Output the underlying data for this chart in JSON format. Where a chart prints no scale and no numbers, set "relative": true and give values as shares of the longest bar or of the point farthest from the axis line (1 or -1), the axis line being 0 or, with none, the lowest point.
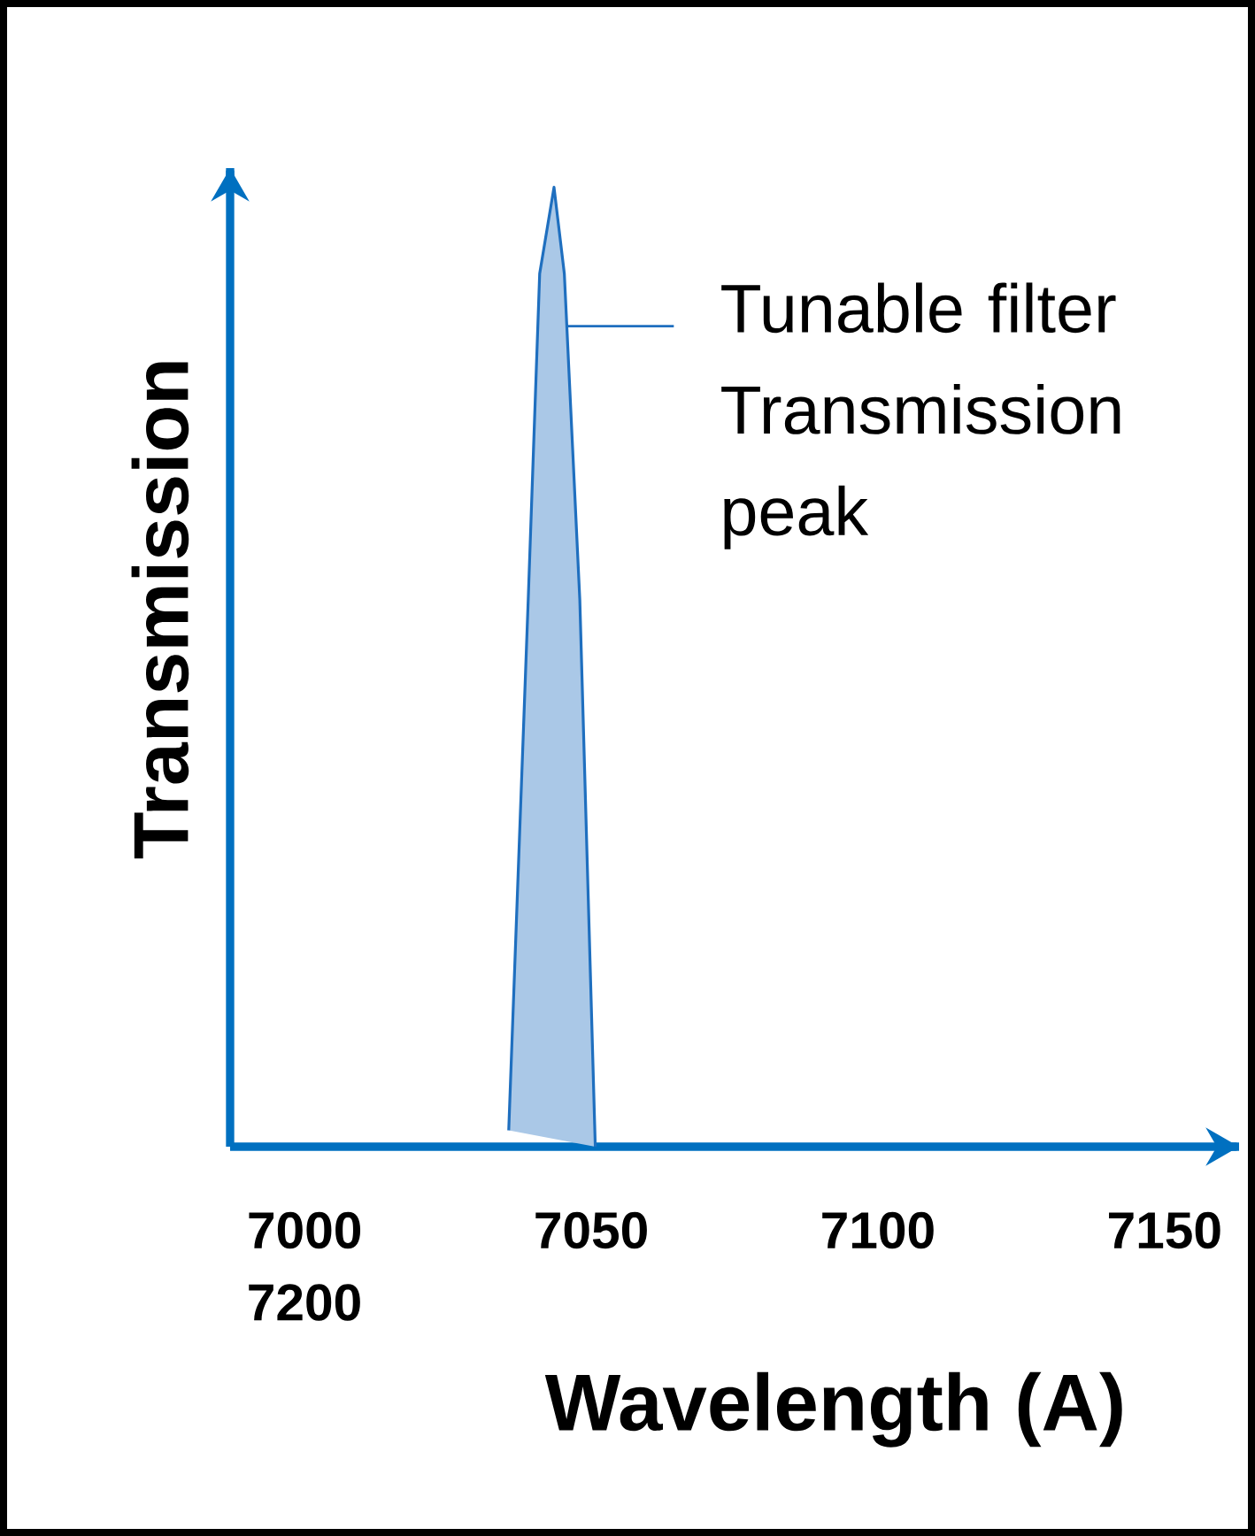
{
  "chart_data": {
    "type": "area",
    "relative": true,
    "xlabel": "Wavelength (A)",
    "ylabel": "Transmission",
    "xlim": [
      6987,
      7163
    ],
    "xticks": [
      7000,
      7050,
      7100,
      7150
    ],
    "series": [
      {
        "color": "#1f6fbf",
        "x": [
          7035.6,
          7039,
          7041,
          7043.5,
          7045.3,
          7048,
          7050.7
        ],
        "values": [
          0.017,
          0.57,
          0.91,
          1,
          0.91,
          0.57,
          0
        ]
      }
    ],
    "annotations": [
      "Tunable filter Transmission peak",
      "7200"
    ]
  }
}
